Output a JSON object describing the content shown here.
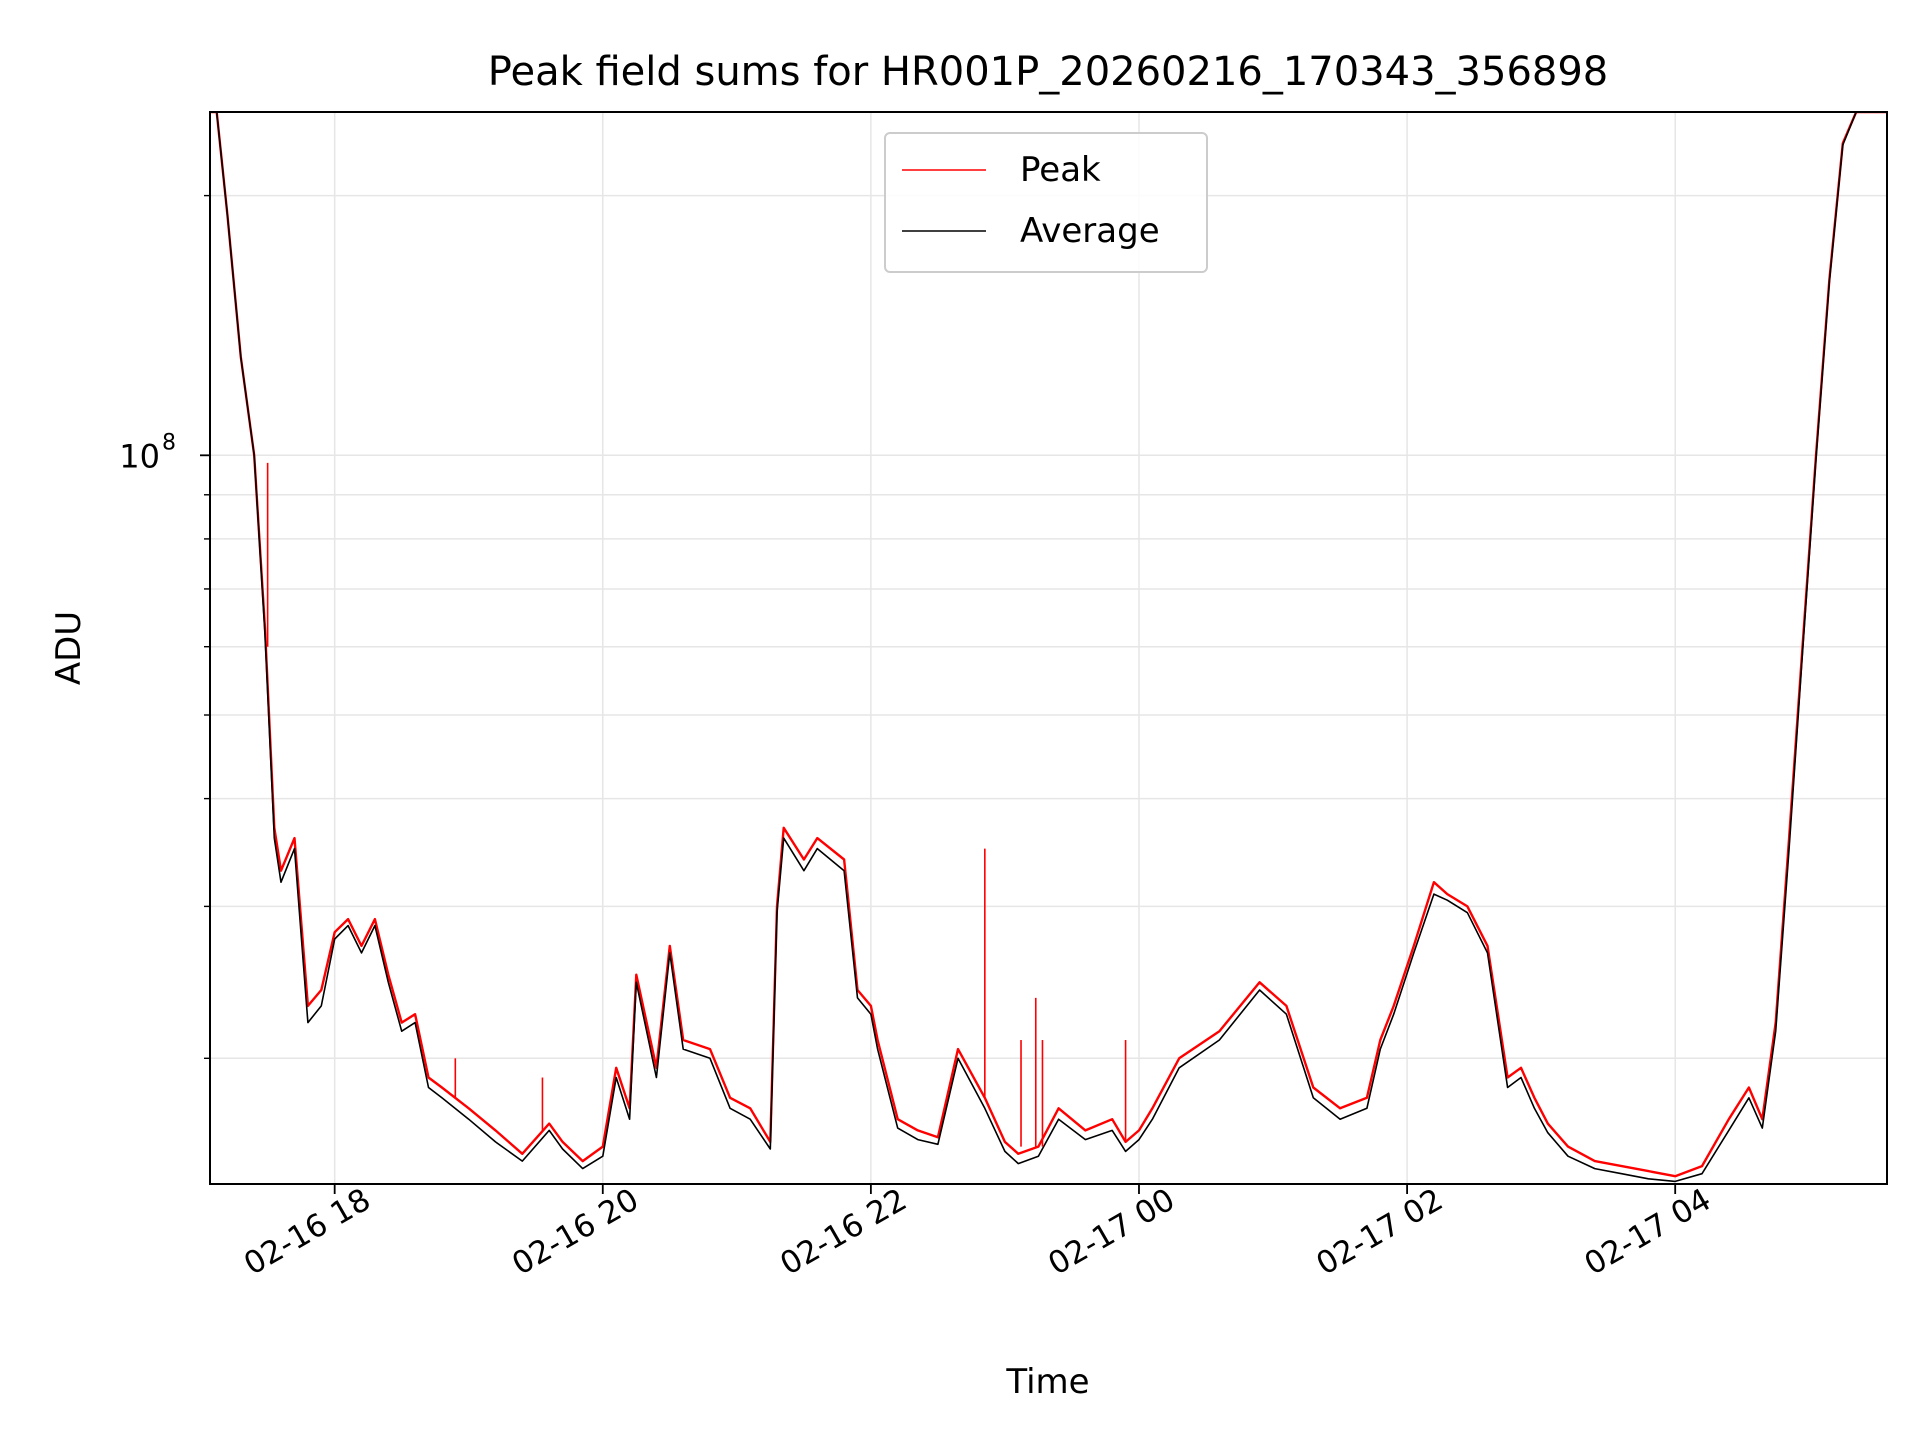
{
  "chart_data": {
    "type": "line",
    "title": "Peak field sums for HR001P_20260216_170343_356898",
    "xlabel": "Time",
    "ylabel": "ADU",
    "yscale": "log",
    "ylim": [
      14300000,
      250000000
    ],
    "x_unit": "hours since 02-16 00:00",
    "xlim": [
      17.07,
      29.58
    ],
    "grid": true,
    "legend_position": "upper center",
    "x_ticks": [
      {
        "value": 18,
        "label": "02-16 18"
      },
      {
        "value": 20,
        "label": "02-16 20"
      },
      {
        "value": 22,
        "label": "02-16 22"
      },
      {
        "value": 24,
        "label": "02-17 00"
      },
      {
        "value": 26,
        "label": "02-17 02"
      },
      {
        "value": 28,
        "label": "02-17 04"
      }
    ],
    "y_major_ticks": [
      {
        "value": 100000000,
        "base": "10",
        "exponent": "8"
      }
    ],
    "y_minor_ticks": [
      20000000,
      30000000,
      40000000,
      50000000,
      60000000,
      70000000,
      80000000,
      90000000,
      200000000
    ],
    "series": [
      {
        "name": "Peak",
        "color": "#ff0000",
        "x": [
          17.07,
          17.12,
          17.2,
          17.3,
          17.4,
          17.48,
          17.55,
          17.6,
          17.7,
          17.8,
          17.9,
          18.0,
          18.1,
          18.2,
          18.3,
          18.4,
          18.5,
          18.6,
          18.7,
          18.8,
          19.0,
          19.2,
          19.4,
          19.6,
          19.7,
          19.85,
          20.0,
          20.1,
          20.2,
          20.25,
          20.4,
          20.5,
          20.6,
          20.8,
          20.95,
          21.1,
          21.25,
          21.3,
          21.35,
          21.5,
          21.6,
          21.8,
          21.9,
          22.0,
          22.05,
          22.2,
          22.35,
          22.5,
          22.65,
          22.85,
          23.0,
          23.1,
          23.25,
          23.4,
          23.6,
          23.8,
          23.9,
          24.0,
          24.1,
          24.3,
          24.6,
          24.9,
          25.1,
          25.3,
          25.5,
          25.7,
          25.8,
          25.9,
          26.05,
          26.2,
          26.3,
          26.45,
          26.6,
          26.75,
          26.85,
          26.95,
          27.05,
          27.2,
          27.4,
          27.6,
          27.8,
          28.0,
          28.2,
          28.4,
          28.55,
          28.65,
          28.75,
          28.85,
          28.95,
          29.05,
          29.15,
          29.25,
          29.35,
          29.45,
          29.52,
          29.58
        ],
        "y": [
          250000000,
          250000000,
          190000000,
          130000000,
          100000000,
          63000000,
          37000000,
          33000000,
          36000000,
          23000000,
          24000000,
          28000000,
          29000000,
          27000000,
          29000000,
          25000000,
          22000000,
          22500000,
          19000000,
          18500000,
          17500000,
          16500000,
          15500000,
          16800000,
          16000000,
          15200000,
          15800000,
          19500000,
          17500000,
          25000000,
          19500000,
          27000000,
          21000000,
          20500000,
          18000000,
          17500000,
          16000000,
          30000000,
          37000000,
          34000000,
          36000000,
          34000000,
          24000000,
          23000000,
          21000000,
          17000000,
          16500000,
          16200000,
          20500000,
          18000000,
          16000000,
          15500000,
          15800000,
          17500000,
          16500000,
          17000000,
          16000000,
          16500000,
          17500000,
          20000000,
          21500000,
          24500000,
          23000000,
          18500000,
          17500000,
          18000000,
          21000000,
          23000000,
          27000000,
          32000000,
          31000000,
          30000000,
          27000000,
          19000000,
          19500000,
          18000000,
          16800000,
          15800000,
          15200000,
          15000000,
          14800000,
          14600000,
          15000000,
          17000000,
          18500000,
          17000000,
          22000000,
          36000000,
          60000000,
          100000000,
          160000000,
          230000000,
          250000000,
          250000000,
          250000000,
          250000000
        ]
      },
      {
        "name": "Average",
        "color": "#000000",
        "x": [
          17.07,
          17.12,
          17.2,
          17.3,
          17.4,
          17.48,
          17.55,
          17.6,
          17.7,
          17.8,
          17.9,
          18.0,
          18.1,
          18.2,
          18.3,
          18.4,
          18.5,
          18.6,
          18.7,
          18.8,
          19.0,
          19.2,
          19.4,
          19.6,
          19.7,
          19.85,
          20.0,
          20.1,
          20.2,
          20.25,
          20.4,
          20.5,
          20.6,
          20.8,
          20.95,
          21.1,
          21.25,
          21.3,
          21.35,
          21.5,
          21.6,
          21.8,
          21.9,
          22.0,
          22.05,
          22.2,
          22.35,
          22.5,
          22.65,
          22.85,
          23.0,
          23.1,
          23.25,
          23.4,
          23.6,
          23.8,
          23.9,
          24.0,
          24.1,
          24.3,
          24.6,
          24.9,
          25.1,
          25.3,
          25.5,
          25.7,
          25.8,
          25.9,
          26.05,
          26.2,
          26.3,
          26.45,
          26.6,
          26.75,
          26.85,
          26.95,
          27.05,
          27.2,
          27.4,
          27.6,
          27.8,
          28.0,
          28.2,
          28.4,
          28.55,
          28.65,
          28.75,
          28.85,
          28.95,
          29.05,
          29.15,
          29.25,
          29.35,
          29.45,
          29.52,
          29.58
        ],
        "y": [
          250000000,
          250000000,
          190000000,
          130000000,
          100000000,
          62000000,
          36000000,
          32000000,
          35000000,
          22000000,
          23000000,
          27500000,
          28500000,
          26500000,
          28500000,
          24500000,
          21500000,
          22000000,
          18500000,
          18000000,
          17000000,
          16000000,
          15200000,
          16500000,
          15700000,
          14900000,
          15400000,
          19000000,
          17000000,
          24500000,
          19000000,
          26500000,
          20500000,
          20000000,
          17500000,
          17000000,
          15700000,
          29500000,
          36000000,
          33000000,
          35000000,
          33000000,
          23500000,
          22500000,
          20500000,
          16600000,
          16100000,
          15900000,
          20000000,
          17500000,
          15600000,
          15100000,
          15400000,
          17000000,
          16100000,
          16500000,
          15600000,
          16100000,
          17000000,
          19500000,
          21000000,
          24000000,
          22500000,
          18000000,
          17000000,
          17500000,
          20500000,
          22500000,
          26500000,
          31000000,
          30500000,
          29500000,
          26500000,
          18500000,
          19000000,
          17500000,
          16400000,
          15400000,
          14900000,
          14700000,
          14500000,
          14400000,
          14700000,
          16500000,
          18000000,
          16600000,
          21500000,
          35000000,
          59000000,
          99000000,
          159000000,
          229000000,
          250000000,
          250000000,
          250000000,
          250000000
        ]
      }
    ],
    "spikes": [
      {
        "series": "Peak",
        "x": 17.5,
        "from": 60000000,
        "to": 98000000
      },
      {
        "series": "Peak",
        "x": 22.85,
        "from": 18000000,
        "to": 35000000
      },
      {
        "series": "Peak",
        "x": 23.12,
        "from": 15800000,
        "to": 21000000
      },
      {
        "series": "Peak",
        "x": 23.23,
        "from": 15800000,
        "to": 23500000
      },
      {
        "series": "Peak",
        "x": 23.28,
        "from": 15800000,
        "to": 21000000
      },
      {
        "series": "Peak",
        "x": 23.9,
        "from": 16000000,
        "to": 21000000
      },
      {
        "series": "Peak",
        "x": 19.55,
        "from": 16500000,
        "to": 19000000
      },
      {
        "series": "Peak",
        "x": 18.9,
        "from": 18000000,
        "to": 20000000
      }
    ]
  }
}
